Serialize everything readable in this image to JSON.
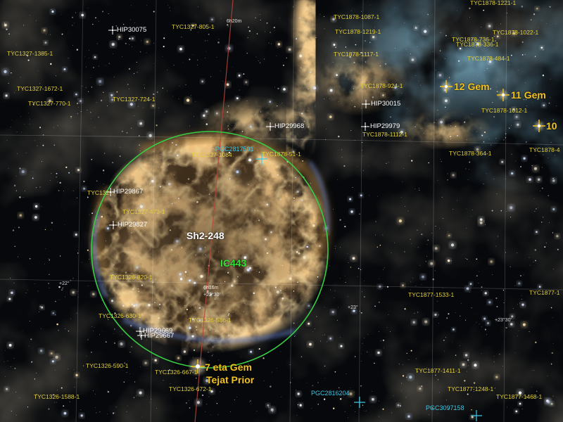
{
  "annotations": {
    "deep_sky_objects": [
      "Sh2-248",
      "IC443"
    ],
    "named_stars": [
      "12 Gem",
      "11 Gem",
      "10",
      "7 eta Gem",
      "Tejat Prior"
    ],
    "hip_stars": [
      "HIP30075",
      "HIP30015",
      "HIP29968",
      "HIP29979",
      "HIP29867",
      "HIP29827",
      "HIP29669",
      "HIP29667"
    ],
    "tyc_stars": [
      "TYC1878-1221-1",
      "TYC1878-1087-1",
      "TYC1327-805-1",
      "TYC1878-1219-1",
      "TYC1878-1022-1",
      "TYC1878-736-1",
      "TYC1878-336-1",
      "TYC1327-1385-1",
      "TYC1878-1117-1",
      "TYC1878-484-1",
      "TYC1878-924-1",
      "TYC1327-1672-1",
      "TYC1327-724-1",
      "TYC1327-770-1",
      "TYC1878-1012-1",
      "TYC1878-1112-1",
      "TYC1878-364-1",
      "TYC1878-4",
      "TYC1327-1084",
      "TYC1878-51-1",
      "TYC132",
      "TYC1327-473-1",
      "TYC1326-820-1",
      "TYC1877-1533-1",
      "TYC1877-1",
      "TYC1326-630-1",
      "TYC1326-586-1",
      "TYC1326-590-1",
      "TYC1326-667-1",
      "TYC1877-1411-1",
      "TYC1326-672-1",
      "TYC1877-1248-1",
      "TYC1326-1588-1",
      "TYC1877-1468-1"
    ],
    "galaxies": [
      "PGC2817501",
      "PGC2816204",
      "PGC3097158"
    ],
    "grid_labels": [
      "6h20m",
      "+22°",
      "6h16m",
      "+22°30'",
      "+23°",
      "+23°30'"
    ]
  },
  "colors": {
    "catalog_label": "#e2cf3a",
    "bright_star_label": "#f4c21c",
    "hip_label": "#ffffff",
    "object_label": "#ffffff",
    "ic443_label": "#35e035",
    "outline_circle": "#38cc44",
    "galaxy_label": "#3cc8e6",
    "grid_label": "#ffffff",
    "reference_line": "#b8443a"
  }
}
